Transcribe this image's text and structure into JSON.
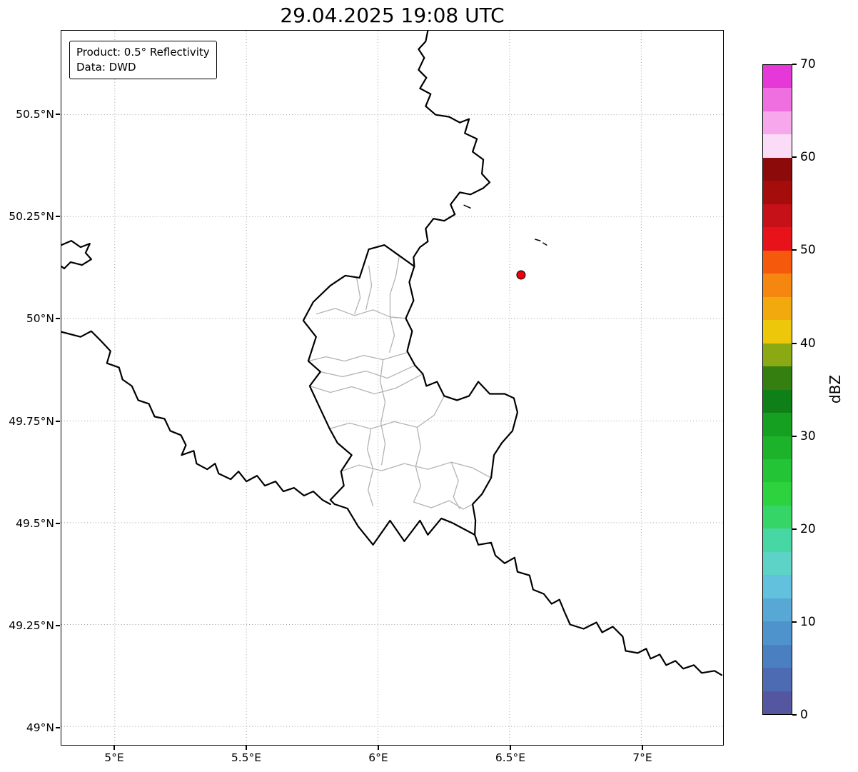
{
  "title": "29.04.2025 19:08 UTC",
  "legend": {
    "product": "Product: 0.5° Reflectivity",
    "source": "Data: DWD"
  },
  "axes": {
    "x_tick_labels": [
      "5°E",
      "5.5°E",
      "6°E",
      "6.5°E",
      "7°E"
    ],
    "y_tick_labels": [
      "50.5°N",
      "50.25°N",
      "50°N",
      "49.75°N",
      "49.5°N",
      "49.25°N",
      "49°N"
    ]
  },
  "colorbar": {
    "label": "dBZ",
    "tick_labels": [
      "70",
      "60",
      "50",
      "40",
      "30",
      "20",
      "10",
      "0"
    ],
    "colors_top_to_bottom": [
      "#e637d8",
      "#ef6ee0",
      "#f7a8ec",
      "#fbdcf6",
      "#8c0a0a",
      "#a50d0d",
      "#c51117",
      "#e8131a",
      "#f55a0c",
      "#f58711",
      "#f2a90d",
      "#edc80a",
      "#8aa912",
      "#347f10",
      "#0f7f18",
      "#16a022",
      "#1cb32b",
      "#23c436",
      "#2dd33f",
      "#35d667",
      "#46d7a4",
      "#5cd3c6",
      "#62c1dc",
      "#58a8d6",
      "#4f93cd",
      "#4a7fc2",
      "#4c6bb3",
      "#5456a0"
    ]
  },
  "map": {
    "marker_color": "#e8000b",
    "border_color": "#000000",
    "district_color": "#b3b3b3",
    "grid_color": "#9e9e9e"
  }
}
